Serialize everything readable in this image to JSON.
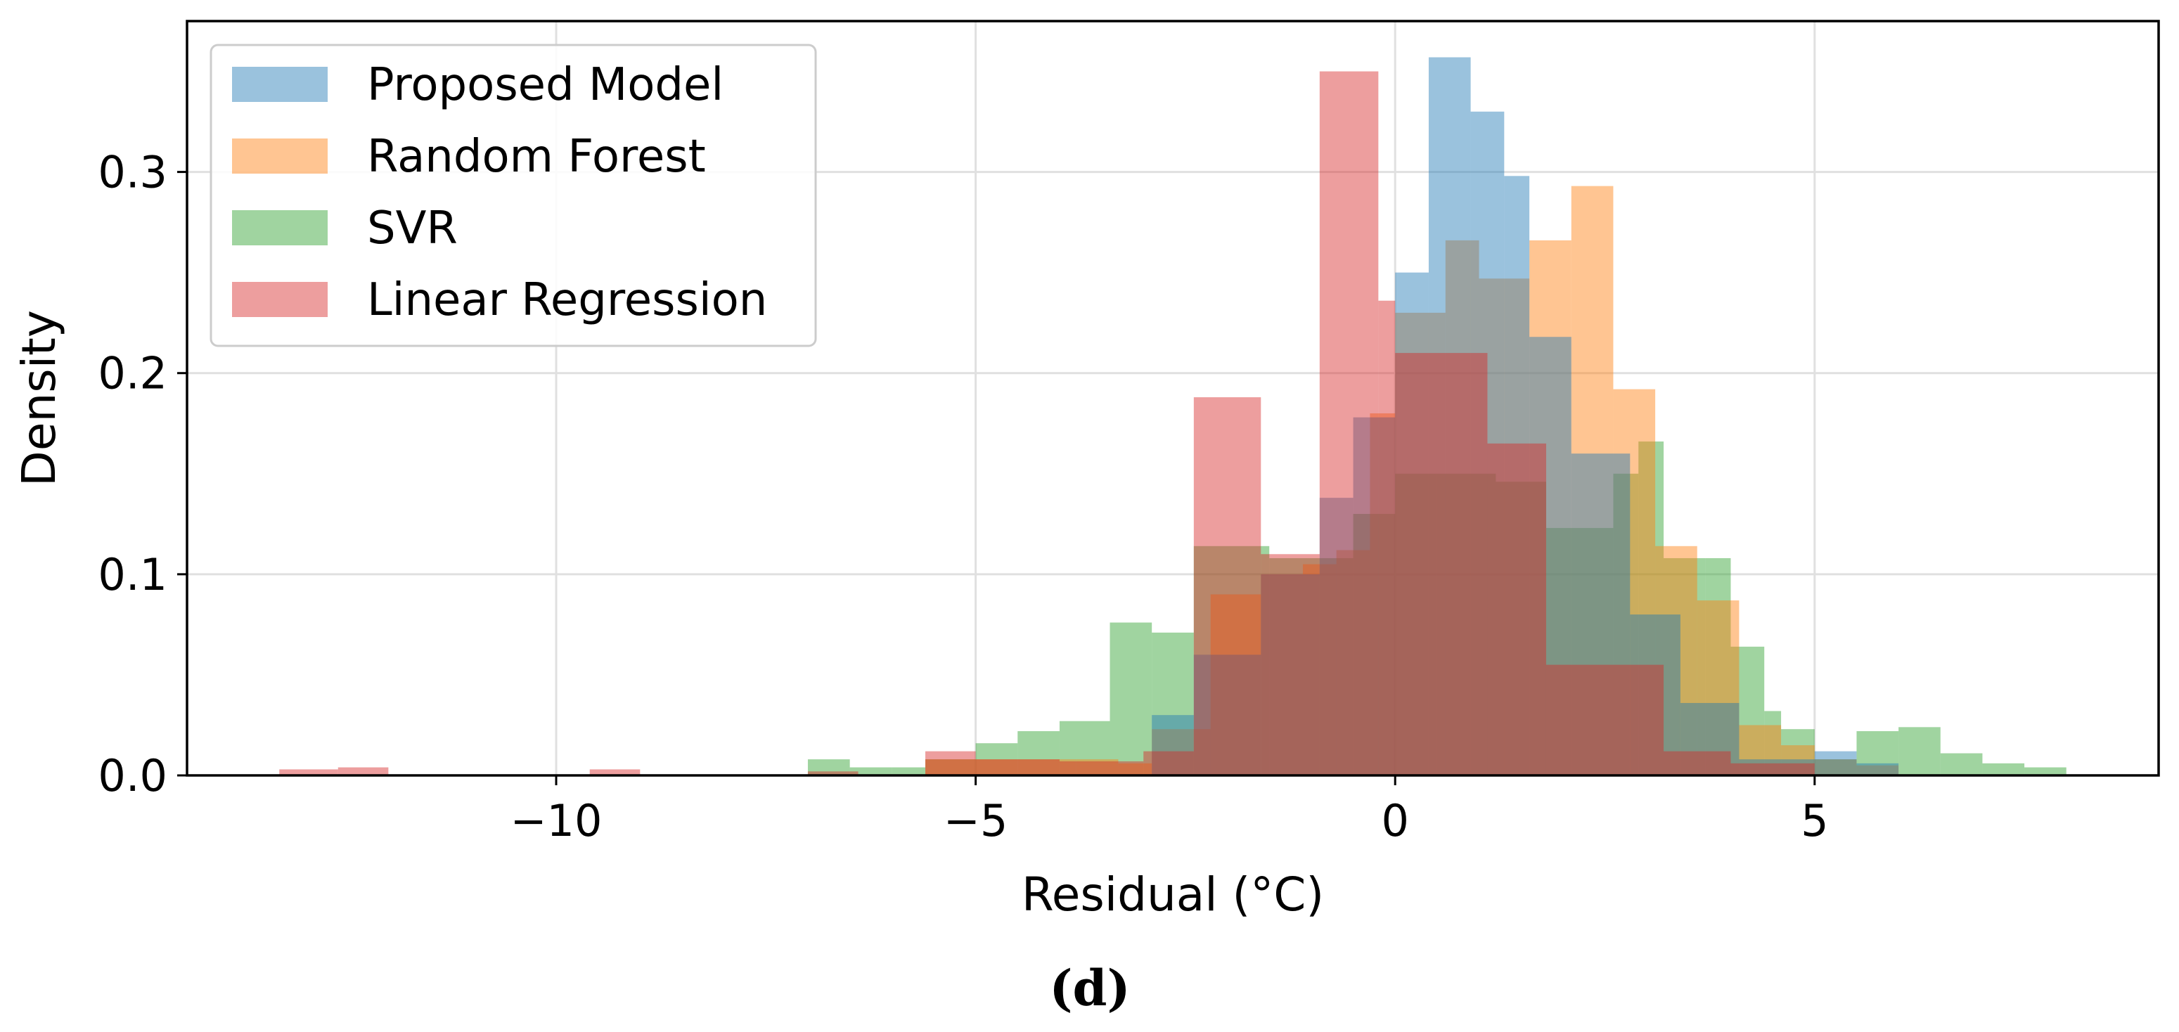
{
  "chart_data": {
    "type": "histogram",
    "panel_label": "(d)",
    "xlabel": "Residual (°C)",
    "ylabel": "Density",
    "xlim": [
      -14.4,
      9.1
    ],
    "ylim": [
      0,
      0.375
    ],
    "xticks": [
      -10,
      -5,
      0,
      5
    ],
    "xtick_labels": [
      "−10",
      "−5",
      "0",
      "5"
    ],
    "yticks": [
      0.0,
      0.1,
      0.2,
      0.3
    ],
    "ytick_labels": [
      "0.0",
      "0.1",
      "0.2",
      "0.3"
    ],
    "grid": true,
    "legend_position": "top-left",
    "series": [
      {
        "name": "SVR",
        "color": "#2ca02c",
        "bins": [
          [
            -7.0,
            -6.5,
            0.008
          ],
          [
            -6.5,
            -6.0,
            0.004
          ],
          [
            -6.0,
            -5.6,
            0.004
          ],
          [
            -5.6,
            -5.0,
            0.008
          ],
          [
            -5.0,
            -4.5,
            0.016
          ],
          [
            -4.5,
            -4.0,
            0.022
          ],
          [
            -4.0,
            -3.4,
            0.027
          ],
          [
            -3.4,
            -2.9,
            0.076
          ],
          [
            -2.9,
            -2.4,
            0.071
          ],
          [
            -2.4,
            -1.5,
            0.114
          ],
          [
            -1.5,
            -1.1,
            0.108
          ],
          [
            -1.1,
            -0.5,
            0.108
          ],
          [
            -0.5,
            0.0,
            0.13
          ],
          [
            0.0,
            0.5,
            0.15
          ],
          [
            0.5,
            1.2,
            0.15
          ],
          [
            1.2,
            1.8,
            0.146
          ],
          [
            1.8,
            2.6,
            0.123
          ],
          [
            2.6,
            2.9,
            0.15
          ],
          [
            2.9,
            3.2,
            0.166
          ],
          [
            3.2,
            3.7,
            0.108
          ],
          [
            3.7,
            4.0,
            0.108
          ],
          [
            4.0,
            4.4,
            0.064
          ],
          [
            4.4,
            4.6,
            0.032
          ],
          [
            4.6,
            5.0,
            0.023
          ],
          [
            5.0,
            5.5,
            0.008
          ],
          [
            5.5,
            6.0,
            0.022
          ],
          [
            6.0,
            6.5,
            0.024
          ],
          [
            6.5,
            7.0,
            0.011
          ],
          [
            7.0,
            7.5,
            0.006
          ],
          [
            7.5,
            8.0,
            0.004
          ]
        ]
      },
      {
        "name": "Random Forest",
        "color": "#ff7f0e",
        "bins": [
          [
            -5.6,
            -5.0,
            0.008
          ],
          [
            -5.0,
            -4.5,
            0.008
          ],
          [
            -4.5,
            -3.8,
            0.008
          ],
          [
            -3.8,
            -3.3,
            0.008
          ],
          [
            -3.3,
            -2.9,
            0.006
          ],
          [
            -2.9,
            -2.2,
            0.023
          ],
          [
            -2.2,
            -1.6,
            0.09
          ],
          [
            -1.6,
            -1.1,
            0.1
          ],
          [
            -1.1,
            -0.7,
            0.105
          ],
          [
            -0.7,
            -0.3,
            0.112
          ],
          [
            -0.3,
            0.0,
            0.18
          ],
          [
            0.0,
            0.6,
            0.23
          ],
          [
            0.6,
            1.0,
            0.266
          ],
          [
            1.0,
            1.6,
            0.247
          ],
          [
            1.6,
            2.1,
            0.266
          ],
          [
            2.1,
            2.6,
            0.293
          ],
          [
            2.6,
            3.1,
            0.192
          ],
          [
            3.1,
            3.6,
            0.114
          ],
          [
            3.6,
            4.1,
            0.087
          ],
          [
            4.1,
            4.6,
            0.025
          ],
          [
            4.6,
            5.0,
            0.015
          ],
          [
            5.0,
            5.5,
            0.008
          ],
          [
            5.5,
            6.0,
            0.005
          ]
        ]
      },
      {
        "name": "Proposed Model",
        "color": "#1f77b4",
        "bins": [
          [
            -2.9,
            -2.4,
            0.03
          ],
          [
            -2.4,
            -1.6,
            0.06
          ],
          [
            -1.6,
            -0.9,
            0.1
          ],
          [
            -0.9,
            -0.5,
            0.138
          ],
          [
            -0.5,
            0.0,
            0.178
          ],
          [
            0.0,
            0.4,
            0.25
          ],
          [
            0.4,
            0.9,
            0.357
          ],
          [
            0.9,
            1.3,
            0.33
          ],
          [
            1.3,
            1.6,
            0.298
          ],
          [
            1.6,
            2.1,
            0.218
          ],
          [
            2.1,
            2.8,
            0.16
          ],
          [
            2.8,
            3.4,
            0.08
          ],
          [
            3.4,
            4.1,
            0.036
          ],
          [
            4.1,
            5.0,
            0.008
          ],
          [
            5.0,
            5.5,
            0.012
          ],
          [
            5.5,
            6.0,
            0.006
          ]
        ]
      },
      {
        "name": "Linear Regression",
        "color": "#d62728",
        "bins": [
          [
            -13.3,
            -12.6,
            0.003
          ],
          [
            -12.6,
            -12.0,
            0.004
          ],
          [
            -9.6,
            -9.0,
            0.003
          ],
          [
            -7.0,
            -6.4,
            0.002
          ],
          [
            -5.6,
            -5.0,
            0.012
          ],
          [
            -5.0,
            -4.0,
            0.008
          ],
          [
            -4.0,
            -3.0,
            0.007
          ],
          [
            -3.0,
            -2.4,
            0.012
          ],
          [
            -2.4,
            -1.6,
            0.188
          ],
          [
            -1.6,
            -0.9,
            0.11
          ],
          [
            -0.9,
            -0.2,
            0.35
          ],
          [
            -0.2,
            0.0,
            0.236
          ],
          [
            0.0,
            1.1,
            0.21
          ],
          [
            1.1,
            1.8,
            0.165
          ],
          [
            1.8,
            3.2,
            0.055
          ],
          [
            3.2,
            4.0,
            0.012
          ],
          [
            4.0,
            5.0,
            0.006
          ]
        ]
      }
    ]
  }
}
